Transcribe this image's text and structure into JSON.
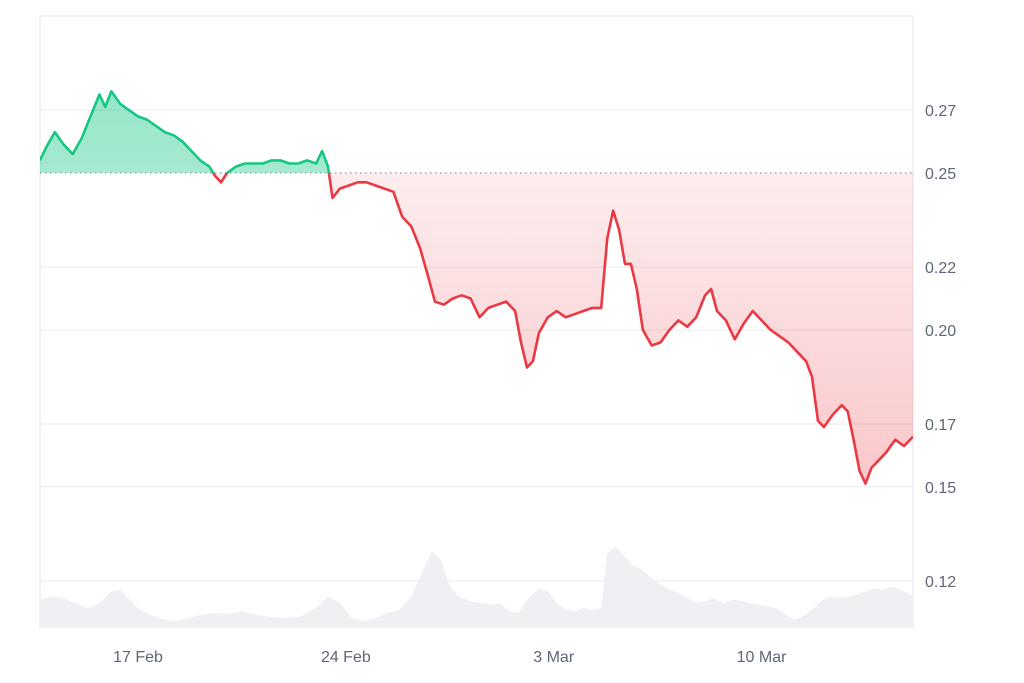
{
  "chart_data": {
    "type": "area",
    "title": "",
    "xlabel": "",
    "ylabel": "",
    "baseline": 0.25,
    "ylim": [
      0.105,
      0.3
    ],
    "y_ticks": [
      0.27,
      0.25,
      0.22,
      0.2,
      0.17,
      0.15,
      0.12
    ],
    "y_tick_labels": [
      "0.27",
      "0.25",
      "0.22",
      "0.20",
      "0.17",
      "0.15",
      "0.12"
    ],
    "x_range_days": [
      13.7,
      15.35
    ],
    "x_ticks": [
      17,
      24,
      31,
      38
    ],
    "x_tick_labels": [
      "17 Feb",
      "24 Feb",
      "3 Mar",
      "10 Mar"
    ],
    "colors": {
      "above": "#16c784",
      "above_fill": "#16c784",
      "below": "#ea3943",
      "below_fill": "#ea3943",
      "volume": "#eef0f3",
      "grid": "#e9ebef",
      "tick_text": "#5f6776"
    },
    "series": [
      {
        "values_price": [
          [
            13.7,
            0.254
          ],
          [
            13.9,
            0.258
          ],
          [
            14.2,
            0.263
          ],
          [
            14.5,
            0.259
          ],
          [
            14.8,
            0.256
          ],
          [
            15.1,
            0.261
          ],
          [
            15.4,
            0.268
          ],
          [
            15.7,
            0.275
          ],
          [
            15.9,
            0.271
          ],
          [
            16.1,
            0.276
          ],
          [
            16.4,
            0.272
          ],
          [
            16.7,
            0.27
          ],
          [
            17.0,
            0.268
          ],
          [
            17.3,
            0.267
          ],
          [
            17.6,
            0.265
          ],
          [
            17.9,
            0.263
          ],
          [
            18.2,
            0.262
          ],
          [
            18.5,
            0.26
          ],
          [
            18.8,
            0.257
          ],
          [
            19.1,
            0.254
          ],
          [
            19.4,
            0.252
          ],
          [
            19.6,
            0.249
          ],
          [
            19.8,
            0.247
          ],
          [
            20.0,
            0.25
          ],
          [
            20.3,
            0.252
          ],
          [
            20.6,
            0.253
          ],
          [
            20.9,
            0.253
          ],
          [
            21.2,
            0.253
          ],
          [
            21.5,
            0.254
          ],
          [
            21.8,
            0.254
          ],
          [
            22.1,
            0.253
          ],
          [
            22.4,
            0.253
          ],
          [
            22.7,
            0.254
          ],
          [
            23.0,
            0.253
          ],
          [
            23.2,
            0.257
          ],
          [
            23.4,
            0.252
          ],
          [
            23.55,
            0.242
          ],
          [
            23.8,
            0.245
          ],
          [
            24.1,
            0.246
          ],
          [
            24.4,
            0.247
          ],
          [
            24.7,
            0.247
          ],
          [
            25.0,
            0.246
          ],
          [
            25.3,
            0.245
          ],
          [
            25.6,
            0.244
          ],
          [
            25.9,
            0.236
          ],
          [
            26.2,
            0.233
          ],
          [
            26.5,
            0.226
          ],
          [
            26.8,
            0.216
          ],
          [
            27.0,
            0.209
          ],
          [
            27.3,
            0.208
          ],
          [
            27.6,
            0.21
          ],
          [
            27.9,
            0.211
          ],
          [
            28.2,
            0.21
          ],
          [
            28.5,
            0.204
          ],
          [
            28.8,
            0.207
          ],
          [
            29.1,
            0.208
          ],
          [
            29.4,
            0.209
          ],
          [
            29.7,
            0.206
          ],
          [
            29.9,
            0.196
          ],
          [
            30.1,
            0.188
          ],
          [
            30.3,
            0.19
          ],
          [
            30.5,
            0.199
          ],
          [
            30.8,
            0.204
          ],
          [
            31.1,
            0.206
          ],
          [
            31.4,
            0.204
          ],
          [
            31.7,
            0.205
          ],
          [
            32.0,
            0.206
          ],
          [
            32.3,
            0.207
          ],
          [
            32.6,
            0.207
          ],
          [
            32.8,
            0.229
          ],
          [
            33.0,
            0.238
          ],
          [
            33.2,
            0.232
          ],
          [
            33.4,
            0.221
          ],
          [
            33.6,
            0.221
          ],
          [
            33.8,
            0.213
          ],
          [
            34.0,
            0.2
          ],
          [
            34.3,
            0.195
          ],
          [
            34.6,
            0.196
          ],
          [
            34.9,
            0.2
          ],
          [
            35.2,
            0.203
          ],
          [
            35.5,
            0.201
          ],
          [
            35.8,
            0.204
          ],
          [
            36.1,
            0.211
          ],
          [
            36.3,
            0.213
          ],
          [
            36.5,
            0.206
          ],
          [
            36.8,
            0.203
          ],
          [
            37.1,
            0.197
          ],
          [
            37.4,
            0.202
          ],
          [
            37.7,
            0.206
          ],
          [
            38.0,
            0.203
          ],
          [
            38.3,
            0.2
          ],
          [
            38.6,
            0.198
          ],
          [
            38.9,
            0.196
          ],
          [
            39.2,
            0.193
          ],
          [
            39.5,
            0.19
          ],
          [
            39.7,
            0.185
          ],
          [
            39.9,
            0.171
          ],
          [
            40.1,
            0.169
          ],
          [
            40.4,
            0.173
          ],
          [
            40.7,
            0.176
          ],
          [
            40.9,
            0.174
          ],
          [
            41.1,
            0.165
          ],
          [
            41.3,
            0.155
          ],
          [
            41.5,
            0.151
          ],
          [
            41.7,
            0.156
          ],
          [
            41.9,
            0.158
          ],
          [
            42.2,
            0.161
          ],
          [
            42.5,
            0.165
          ],
          [
            42.8,
            0.163
          ],
          [
            43.1,
            0.166
          ]
        ]
      }
    ],
    "volume": [
      [
        13.7,
        0.34
      ],
      [
        14.1,
        0.38
      ],
      [
        14.5,
        0.36
      ],
      [
        14.9,
        0.3
      ],
      [
        15.3,
        0.24
      ],
      [
        15.7,
        0.3
      ],
      [
        16.1,
        0.44
      ],
      [
        16.4,
        0.46
      ],
      [
        16.7,
        0.35
      ],
      [
        17.0,
        0.24
      ],
      [
        17.4,
        0.16
      ],
      [
        17.8,
        0.11
      ],
      [
        18.2,
        0.08
      ],
      [
        18.6,
        0.11
      ],
      [
        19.0,
        0.15
      ],
      [
        19.5,
        0.18
      ],
      [
        20.0,
        0.17
      ],
      [
        20.5,
        0.2
      ],
      [
        21.0,
        0.16
      ],
      [
        21.5,
        0.13
      ],
      [
        22.0,
        0.12
      ],
      [
        22.5,
        0.14
      ],
      [
        23.0,
        0.25
      ],
      [
        23.4,
        0.38
      ],
      [
        23.8,
        0.3
      ],
      [
        24.2,
        0.12
      ],
      [
        24.6,
        0.08
      ],
      [
        25.0,
        0.12
      ],
      [
        25.4,
        0.18
      ],
      [
        25.8,
        0.22
      ],
      [
        26.2,
        0.38
      ],
      [
        26.6,
        0.7
      ],
      [
        26.9,
        0.92
      ],
      [
        27.2,
        0.82
      ],
      [
        27.5,
        0.5
      ],
      [
        27.8,
        0.38
      ],
      [
        28.2,
        0.32
      ],
      [
        28.6,
        0.3
      ],
      [
        28.9,
        0.28
      ],
      [
        29.2,
        0.3
      ],
      [
        29.5,
        0.2
      ],
      [
        29.8,
        0.18
      ],
      [
        30.1,
        0.34
      ],
      [
        30.5,
        0.48
      ],
      [
        30.8,
        0.44
      ],
      [
        31.1,
        0.3
      ],
      [
        31.4,
        0.22
      ],
      [
        31.7,
        0.2
      ],
      [
        32.0,
        0.24
      ],
      [
        32.3,
        0.22
      ],
      [
        32.6,
        0.24
      ],
      [
        32.8,
        0.9
      ],
      [
        33.1,
        0.98
      ],
      [
        33.4,
        0.86
      ],
      [
        33.7,
        0.74
      ],
      [
        34.0,
        0.7
      ],
      [
        34.3,
        0.6
      ],
      [
        34.6,
        0.52
      ],
      [
        34.9,
        0.46
      ],
      [
        35.2,
        0.42
      ],
      [
        35.5,
        0.36
      ],
      [
        35.8,
        0.3
      ],
      [
        36.1,
        0.32
      ],
      [
        36.4,
        0.36
      ],
      [
        36.7,
        0.3
      ],
      [
        37.0,
        0.34
      ],
      [
        37.3,
        0.33
      ],
      [
        37.6,
        0.3
      ],
      [
        37.9,
        0.28
      ],
      [
        38.2,
        0.26
      ],
      [
        38.5,
        0.24
      ],
      [
        38.8,
        0.16
      ],
      [
        39.1,
        0.1
      ],
      [
        39.4,
        0.14
      ],
      [
        39.7,
        0.22
      ],
      [
        40.0,
        0.32
      ],
      [
        40.3,
        0.38
      ],
      [
        40.6,
        0.36
      ],
      [
        40.9,
        0.38
      ],
      [
        41.2,
        0.4
      ],
      [
        41.5,
        0.44
      ],
      [
        41.8,
        0.48
      ],
      [
        42.1,
        0.46
      ],
      [
        42.4,
        0.5
      ],
      [
        42.7,
        0.46
      ],
      [
        43.1,
        0.38
      ]
    ]
  }
}
